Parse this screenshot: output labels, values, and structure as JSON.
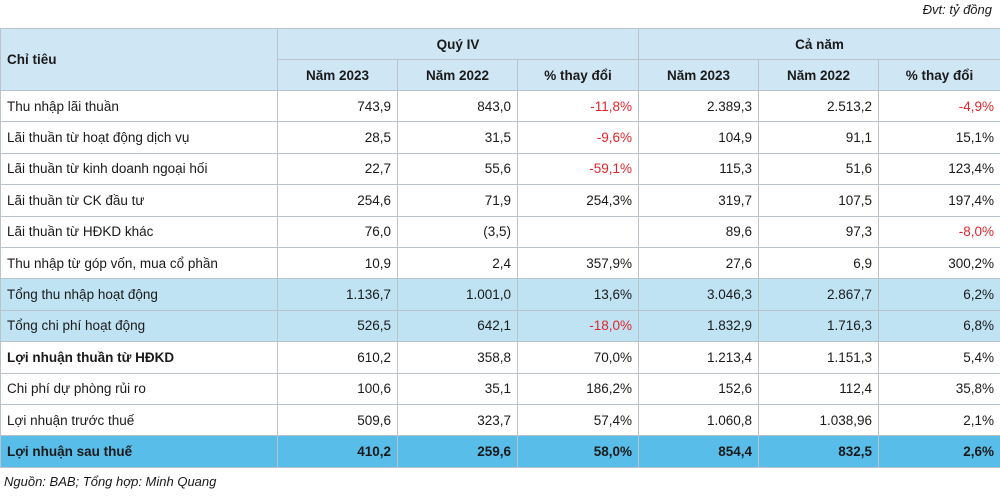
{
  "unit_note": "Đvt: tỷ đồng",
  "header": {
    "label": "Chỉ tiêu",
    "group1": "Quý IV",
    "group2": "Cả năm",
    "subcols": [
      "Năm 2023",
      "Năm 2022",
      "% thay đổi",
      "Năm 2023",
      "Năm 2022",
      "% thay đổi"
    ]
  },
  "rows": [
    {
      "label": "Thu nhập lãi thuần",
      "cells": [
        "743,9",
        "843,0",
        "-11,8%",
        "2.389,3",
        "2.513,2",
        "-4,9%"
      ],
      "style": "normal",
      "neg": [
        false,
        false,
        true,
        false,
        false,
        true
      ]
    },
    {
      "label": "Lãi thuần từ hoạt động dịch vụ",
      "cells": [
        "28,5",
        "31,5",
        "-9,6%",
        "104,9",
        "91,1",
        "15,1%"
      ],
      "style": "normal",
      "neg": [
        false,
        false,
        true,
        false,
        false,
        false
      ]
    },
    {
      "label": "Lãi thuần từ kinh doanh ngoại hối",
      "cells": [
        "22,7",
        "55,6",
        "-59,1%",
        "115,3",
        "51,6",
        "123,4%"
      ],
      "style": "normal",
      "neg": [
        false,
        false,
        true,
        false,
        false,
        false
      ]
    },
    {
      "label": "Lãi thuần từ CK đầu tư",
      "cells": [
        "254,6",
        "71,9",
        "254,3%",
        "319,7",
        "107,5",
        "197,4%"
      ],
      "style": "normal",
      "neg": [
        false,
        false,
        false,
        false,
        false,
        false
      ]
    },
    {
      "label": "Lãi thuần từ HĐKD khác",
      "cells": [
        "76,0",
        "(3,5)",
        "",
        "89,6",
        "97,3",
        "-8,0%"
      ],
      "style": "normal",
      "neg": [
        false,
        false,
        false,
        false,
        false,
        true
      ]
    },
    {
      "label": "Thu nhập từ góp vốn, mua cổ phần",
      "cells": [
        "10,9",
        "2,4",
        "357,9%",
        "27,6",
        "6,9",
        "300,2%"
      ],
      "style": "normal",
      "neg": [
        false,
        false,
        false,
        false,
        false,
        false
      ]
    },
    {
      "label": "Tổng thu nhập hoạt động",
      "cells": [
        "1.136,7",
        "1.001,0",
        "13,6%",
        "3.046,3",
        "2.867,7",
        "6,2%"
      ],
      "style": "highlight",
      "neg": [
        false,
        false,
        false,
        false,
        false,
        false
      ]
    },
    {
      "label": "Tổng chi phí hoạt động",
      "cells": [
        "526,5",
        "642,1",
        "-18,0%",
        "1.832,9",
        "1.716,3",
        "6,8%"
      ],
      "style": "highlight",
      "neg": [
        false,
        false,
        true,
        false,
        false,
        false
      ]
    },
    {
      "label": "Lợi nhuận thuần từ HĐKD",
      "cells": [
        "610,2",
        "358,8",
        "70,0%",
        "1.213,4",
        "1.151,3",
        "5,4%"
      ],
      "style": "bold",
      "neg": [
        false,
        false,
        false,
        false,
        false,
        false
      ]
    },
    {
      "label": "Chi phí dự phòng rủi ro",
      "cells": [
        "100,6",
        "35,1",
        "186,2%",
        "152,6",
        "112,4",
        "35,8%"
      ],
      "style": "normal",
      "neg": [
        false,
        false,
        false,
        false,
        false,
        false
      ]
    },
    {
      "label": "Lợi nhuận trước thuế",
      "cells": [
        "509,6",
        "323,7",
        "57,4%",
        "1.060,8",
        "1.038,96",
        "2,1%"
      ],
      "style": "normal",
      "neg": [
        false,
        false,
        false,
        false,
        false,
        false
      ]
    },
    {
      "label": "Lợi nhuận sau thuế",
      "cells": [
        "410,2",
        "259,6",
        "58,0%",
        "854,4",
        "832,5",
        "2,6%"
      ],
      "style": "final",
      "neg": [
        false,
        false,
        false,
        false,
        false,
        false
      ]
    }
  ],
  "source": "Nguồn: BAB; Tổng hợp: Minh Quang",
  "colors": {
    "header_bg": "#cfe6f4",
    "highlight_bg": "#bfe3f3",
    "final_bg": "#58bde9",
    "negative_text": "#e0262c",
    "border": "#b9c3c9"
  }
}
